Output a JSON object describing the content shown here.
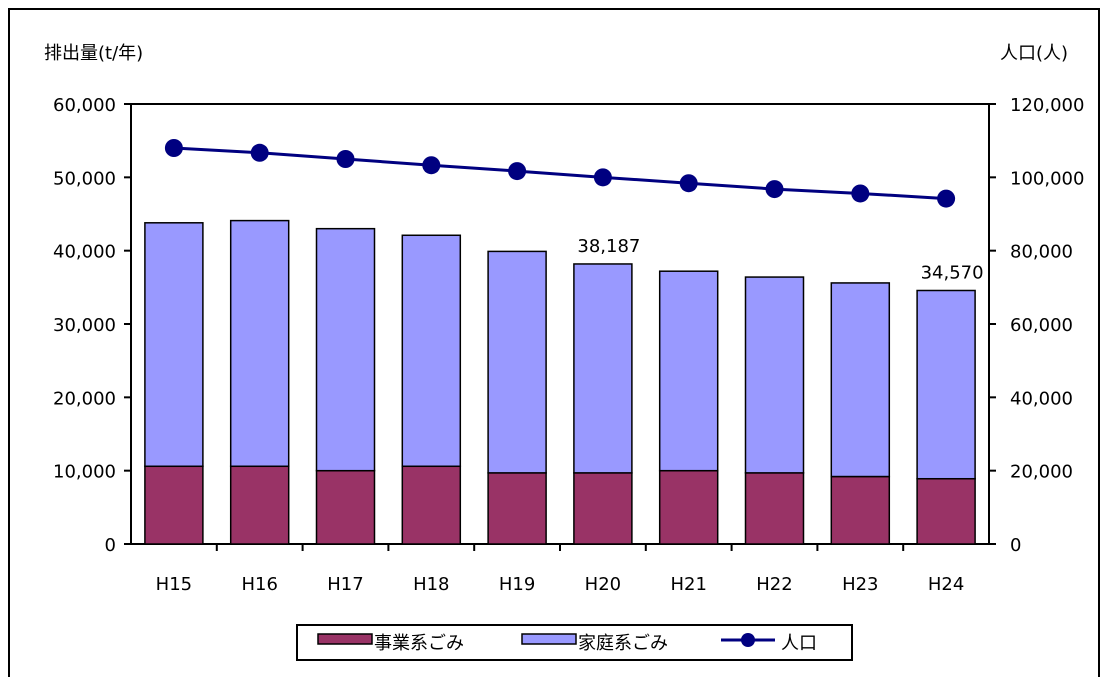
{
  "chart_data": {
    "type": "bar",
    "stacked": true,
    "categories": [
      "H15",
      "H16",
      "H17",
      "H18",
      "H19",
      "H20",
      "H21",
      "H22",
      "H23",
      "H24"
    ],
    "series": [
      {
        "name": "事業系ごみ",
        "kind": "bar",
        "axis": "left",
        "color": "#993366",
        "values": [
          10600,
          10600,
          10000,
          10600,
          9700,
          9700,
          10000,
          9700,
          9200,
          8900
        ]
      },
      {
        "name": "家庭系ごみ",
        "kind": "bar",
        "axis": "left",
        "color": "#9999ff",
        "values": [
          33200,
          33500,
          33000,
          31500,
          30200,
          28487,
          27200,
          26700,
          26400,
          25670
        ]
      },
      {
        "name": "人口",
        "kind": "line",
        "axis": "right",
        "color": "#000080",
        "values": [
          108000,
          106700,
          105000,
          103300,
          101700,
          100000,
          98400,
          96800,
          95600,
          94200
        ]
      }
    ],
    "totals_labels": [
      {
        "category": "H20",
        "text": "38,187"
      },
      {
        "category": "H24",
        "text": "34,570"
      }
    ],
    "ylabel": "排出量(t/年)",
    "y2label": "人口(人)",
    "ylim": [
      0,
      60000
    ],
    "y2lim": [
      0,
      120000
    ],
    "yticks": [
      "0",
      "10,000",
      "20,000",
      "30,000",
      "40,000",
      "50,000",
      "60,000"
    ],
    "y2ticks": [
      "0",
      "20,000",
      "40,000",
      "60,000",
      "80,000",
      "100,000",
      "120,000"
    ],
    "grid": false,
    "legend_position": "bottom"
  }
}
